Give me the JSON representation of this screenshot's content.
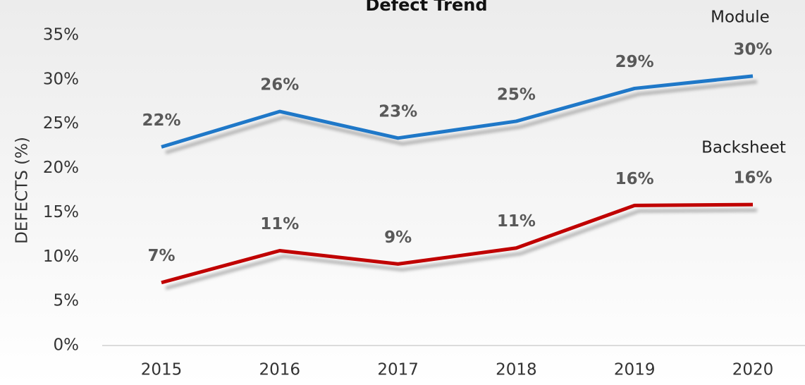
{
  "chart_data": {
    "type": "line",
    "title": "Defect Trend",
    "y_label": "DEFECTS (%)",
    "categories": [
      "2015",
      "2016",
      "2017",
      "2018",
      "2019",
      "2020"
    ],
    "series": [
      {
        "name": "Module",
        "color": "#1f78c8",
        "values": [
          22.4,
          26.4,
          23.4,
          25.3,
          29.0,
          30.4
        ],
        "value_labels": [
          "22%",
          "26%",
          "23%",
          "25%",
          "29%",
          "30%"
        ]
      },
      {
        "name": "Backsheet",
        "color": "#c00000",
        "values": [
          7.1,
          10.7,
          9.2,
          11.0,
          15.8,
          15.9
        ],
        "value_labels": [
          "7%",
          "11%",
          "9%",
          "11%",
          "16%",
          "16%"
        ]
      }
    ],
    "ylim": [
      0,
      35
    ],
    "yticks": [
      {
        "value": 0,
        "label": "0%"
      },
      {
        "value": 5,
        "label": "5%"
      },
      {
        "value": 10,
        "label": "10%"
      },
      {
        "value": 15,
        "label": "15%"
      },
      {
        "value": 20,
        "label": "20%"
      },
      {
        "value": 25,
        "label": "25%"
      },
      {
        "value": 30,
        "label": "30%"
      },
      {
        "value": 35,
        "label": "35%"
      }
    ],
    "grid": false
  }
}
